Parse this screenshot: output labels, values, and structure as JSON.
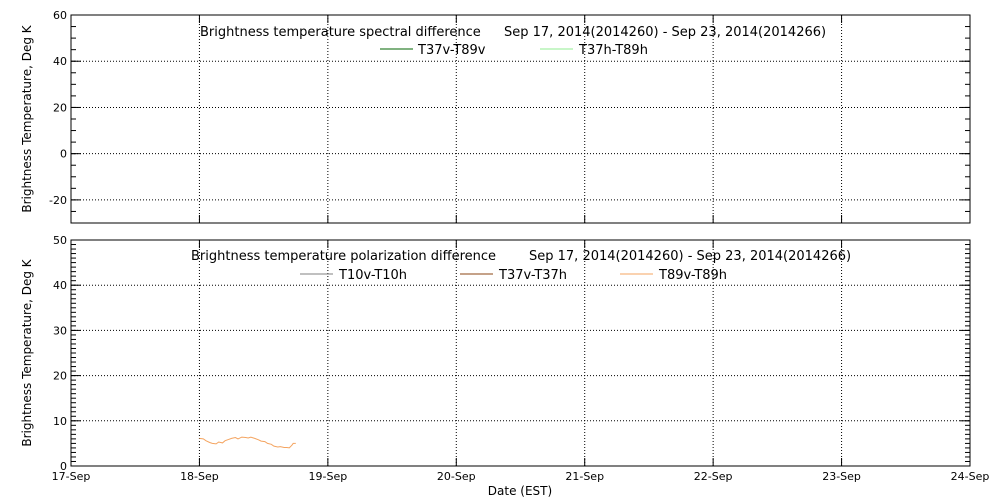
{
  "chart_data": [
    {
      "type": "line",
      "title": "Brightness temperature spectral difference",
      "date_range": "Sep 17, 2014(2014260) - Sep 23, 2014(2014266)",
      "xlabel": "",
      "ylabel": "Brightness Temperature, Deg K",
      "ylim": [
        -30,
        60
      ],
      "yticks": [
        -20,
        0,
        20,
        40,
        60
      ],
      "ytick_labels": [
        "-20",
        "0",
        "20",
        "40",
        "60"
      ],
      "xlim": [
        17,
        24
      ],
      "grid": true,
      "legend_position": "top-center",
      "series": [
        {
          "name": "T37v-T89v",
          "color": "#006400",
          "points": []
        },
        {
          "name": "T37h-T89h",
          "color": "#90ee90",
          "points": []
        }
      ]
    },
    {
      "type": "line",
      "title": "Brightness temperature polarization difference",
      "date_range": "Sep 17, 2014(2014260) - Sep 23, 2014(2014266)",
      "xlabel": "Date (EST)",
      "ylabel": "Brightness Temperature, Deg K",
      "ylim": [
        0,
        50
      ],
      "yticks": [
        0,
        10,
        20,
        30,
        40,
        50
      ],
      "ytick_labels": [
        "0",
        "10",
        "20",
        "30",
        "40",
        "50"
      ],
      "xlim": [
        17,
        24
      ],
      "x_categories": [
        "17-Sep",
        "18-Sep",
        "19-Sep",
        "20-Sep",
        "21-Sep",
        "22-Sep",
        "23-Sep",
        "24-Sep"
      ],
      "grid": true,
      "legend_position": "top-center",
      "series": [
        {
          "name": "T10v-T10h",
          "color": "#808080",
          "points": []
        },
        {
          "name": "T37v-T37h",
          "color": "#8b4513",
          "points": []
        },
        {
          "name": "T89v-T89h",
          "color": "#f4a460",
          "points": [
            [
              18.0,
              6.1
            ],
            [
              18.03,
              6.0
            ],
            [
              18.05,
              5.6
            ],
            [
              18.08,
              5.2
            ],
            [
              18.1,
              5.0
            ],
            [
              18.13,
              4.9
            ],
            [
              18.15,
              5.3
            ],
            [
              18.18,
              5.1
            ],
            [
              18.2,
              5.6
            ],
            [
              18.23,
              5.9
            ],
            [
              18.25,
              6.1
            ],
            [
              18.28,
              6.3
            ],
            [
              18.3,
              6.0
            ],
            [
              18.33,
              6.4
            ],
            [
              18.36,
              6.3
            ],
            [
              18.38,
              6.2
            ],
            [
              18.4,
              6.4
            ],
            [
              18.43,
              6.1
            ],
            [
              18.46,
              5.8
            ],
            [
              18.48,
              5.5
            ],
            [
              18.51,
              5.4
            ],
            [
              18.53,
              5.0
            ],
            [
              18.56,
              4.8
            ],
            [
              18.58,
              4.4
            ],
            [
              18.61,
              4.2
            ],
            [
              18.63,
              4.3
            ],
            [
              18.66,
              4.1
            ],
            [
              18.68,
              4.1
            ],
            [
              18.7,
              4.0
            ],
            [
              18.72,
              4.6
            ],
            [
              18.73,
              5.0
            ],
            [
              18.75,
              5.0
            ]
          ]
        }
      ]
    }
  ]
}
